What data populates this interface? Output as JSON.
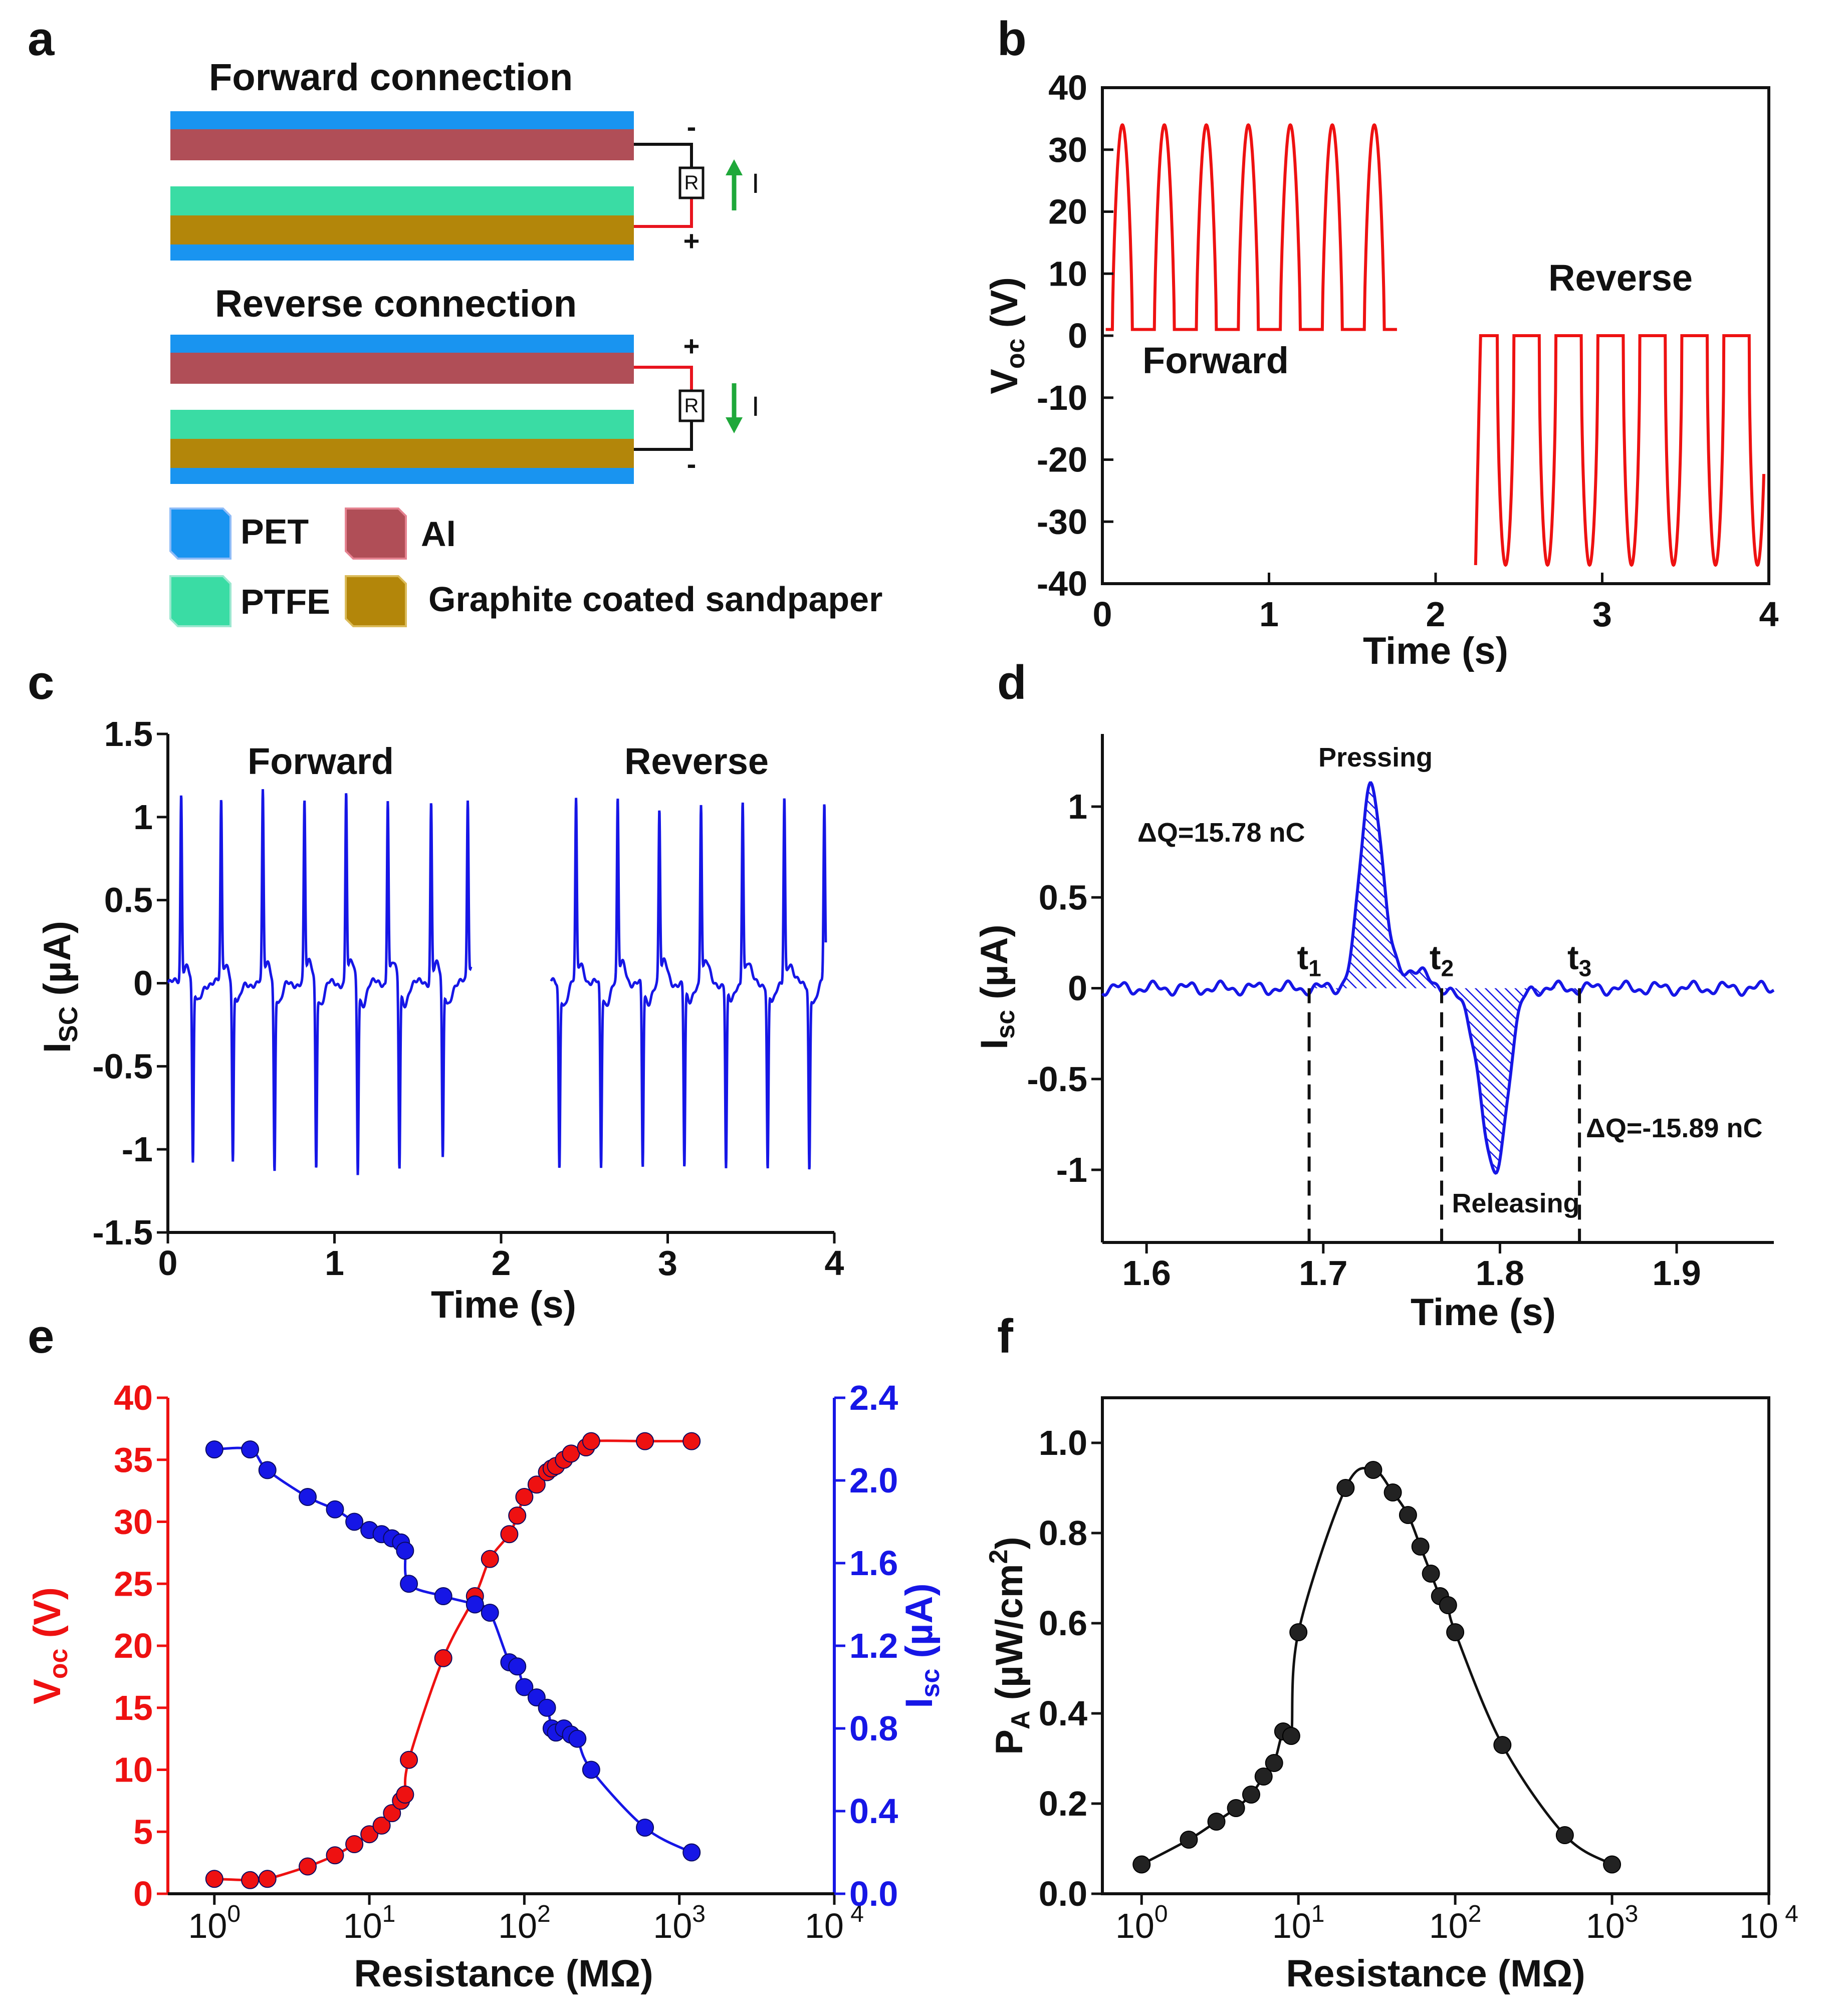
{
  "colors": {
    "red": "#ee1111",
    "blue": "#1616e6",
    "black": "#111111",
    "green": "#1fa83a",
    "pet": "#1994f0",
    "al": "#b04e57",
    "ptfe": "#3adca4",
    "graphite": "#b3860a"
  },
  "panels": {
    "a": "a",
    "b": "b",
    "c": "c",
    "d": "d",
    "e": "e",
    "f": "f"
  },
  "schematic": {
    "forward_title": "Forward connection",
    "reverse_title": "Reverse connection",
    "resistor": "R",
    "current": "I",
    "plus": "+",
    "minus": "-",
    "legend": {
      "pet": "PET",
      "al": "Al",
      "ptfe": "PTFE",
      "graphite": "Graphite coated sandpaper"
    }
  },
  "chart_data": [
    {
      "id": "b",
      "type": "line",
      "xlabel": "Time (s)",
      "ylabel": {
        "main": "V",
        "sub": "oc",
        "rest": " (V)"
      },
      "xlim": [
        0,
        4
      ],
      "ylim": [
        -40,
        40
      ],
      "xticks": [
        "0",
        "1",
        "2",
        "3",
        "4"
      ],
      "yticks": [
        "-40",
        "-30",
        "-20",
        "-10",
        "0",
        "10",
        "20",
        "30",
        "40"
      ],
      "annotations": {
        "forward": "Forward",
        "reverse": "Reverse"
      },
      "series": [
        {
          "name": "Forward",
          "period": 0.252,
          "first_peak_t": 0.12,
          "peak": 34,
          "base": 1.0,
          "t_end": 1.77,
          "peaks": 7
        },
        {
          "name": "Reverse",
          "period": 0.252,
          "t_start": 2.24,
          "t_end": 3.97,
          "top": 0.0,
          "bottom": -37,
          "peaks": 7
        }
      ]
    },
    {
      "id": "c",
      "type": "line",
      "xlabel": "Time (s)",
      "ylabel": {
        "main": "I",
        "sub": "SC",
        "rest": " (µA)"
      },
      "xlim": [
        0,
        4
      ],
      "ylim": [
        -1.5,
        1.5
      ],
      "xticks": [
        "0",
        "1",
        "2",
        "3",
        "4"
      ],
      "yticks": [
        "-1.5",
        "-1",
        "-0.5",
        "0",
        "0.5",
        "1",
        "1.5"
      ],
      "annotations": {
        "forward": "Forward",
        "reverse": "Reverse"
      },
      "series": [
        {
          "name": "Forward",
          "t_range": [
            0.0,
            1.82
          ],
          "peak_t": [
            0.08,
            0.32,
            0.57,
            0.82,
            1.07,
            1.32,
            1.58,
            1.8
          ],
          "peak_values": [
            1.1,
            1.05,
            1.1,
            1.05,
            1.12,
            1.08,
            1.06,
            1.06
          ],
          "valley_t": [
            0.15,
            0.39,
            0.64,
            0.89,
            1.14,
            1.39,
            1.65
          ],
          "valley_values": [
            -1.08,
            -1.05,
            -1.1,
            -1.08,
            -1.12,
            -1.1,
            -1.05
          ]
        },
        {
          "name": "Reverse",
          "t_range": [
            2.3,
            3.95
          ],
          "peak_t": [
            2.45,
            2.7,
            2.95,
            3.2,
            3.45,
            3.7,
            3.94
          ],
          "peak_values": [
            1.05,
            1.05,
            1.0,
            1.05,
            1.08,
            1.1,
            1.05
          ],
          "valley_t": [
            2.35,
            2.6,
            2.85,
            3.1,
            3.35,
            3.6,
            3.85
          ],
          "valley_values": [
            -1.08,
            -1.08,
            -1.08,
            -1.08,
            -1.08,
            -1.08,
            -1.08
          ]
        }
      ]
    },
    {
      "id": "d",
      "type": "line",
      "xlabel": "Time (s)",
      "ylabel": {
        "main": "I",
        "sub": "sc",
        "rest": " (µA)"
      },
      "xlim": [
        1.575,
        1.955
      ],
      "ylim": [
        -1.4,
        1.4
      ],
      "xticks": [
        "1.6",
        "1.7",
        "1.8",
        "1.9"
      ],
      "xtick_values": [
        1.6,
        1.7,
        1.8,
        1.9
      ],
      "yticks": [
        "-1",
        "-0.5",
        "0",
        "0.5",
        "1"
      ],
      "ytick_values": [
        -1,
        -0.5,
        0,
        0.5,
        1
      ],
      "t_markers": [
        {
          "label": "t",
          "sub": "1",
          "t": 1.692
        },
        {
          "label": "t",
          "sub": "2",
          "t": 1.767
        },
        {
          "label": "t",
          "sub": "3",
          "t": 1.845
        }
      ],
      "annotations": {
        "pressing": "Pressing",
        "releasing": "Releasing",
        "dq_pos": "ΔQ=15.78 nC",
        "dq_neg": "ΔQ=-15.89 nC"
      },
      "peak": {
        "t": 1.727,
        "value": 1.17
      },
      "valley": {
        "t": 1.797,
        "value": -1.02
      }
    },
    {
      "id": "e",
      "type": "scatter",
      "xlabel": "Resistance (MΩ)",
      "xscale": "log",
      "xlim_log10": [
        -0.3,
        4
      ],
      "xticks": [
        {
          "base": "10",
          "exp": "0"
        },
        {
          "base": "10",
          "exp": "1"
        },
        {
          "base": "10",
          "exp": "2"
        },
        {
          "base": "10",
          "exp": "3"
        },
        {
          "base": "10",
          "exp": " 4"
        }
      ],
      "ylabel_left": {
        "main": "V",
        "sub": "oc",
        "rest": " (V)"
      },
      "ylim_left": [
        0,
        40
      ],
      "yticks_left": [
        "0",
        "5",
        "10",
        "15",
        "20",
        "25",
        "30",
        "35",
        "40"
      ],
      "ylabel_right": {
        "main": "I",
        "sub": "sc",
        "rest": " (µA)"
      },
      "ylim_right": [
        0,
        2.4
      ],
      "yticks_right": [
        "0.0",
        "0.4",
        "0.8",
        "1.2",
        "1.6",
        "2.0",
        "2.4"
      ],
      "series": [
        {
          "name": "Voc",
          "axis": "left",
          "x": [
            1,
            1.7,
            2.2,
            4,
            6,
            8,
            10,
            12,
            14,
            16,
            17,
            18,
            30,
            48,
            60,
            80,
            90,
            100,
            120,
            140,
            150,
            160,
            180,
            200,
            250,
            270,
            600,
            1200
          ],
          "y": [
            1.2,
            1.1,
            1.2,
            2.2,
            3.1,
            4.0,
            4.8,
            5.5,
            6.5,
            7.5,
            8.0,
            10.8,
            19.0,
            24.0,
            27.0,
            29.0,
            30.5,
            32.0,
            33.0,
            34.0,
            34.3,
            34.5,
            35.0,
            35.5,
            36.0,
            36.5,
            36.5,
            36.5
          ]
        },
        {
          "name": "Isc",
          "axis": "right",
          "x": [
            1,
            1.7,
            2.2,
            4,
            6,
            8,
            10,
            12,
            14,
            16,
            17,
            18,
            30,
            48,
            60,
            80,
            90,
            100,
            120,
            140,
            150,
            160,
            180,
            200,
            220,
            270,
            600,
            1200
          ],
          "y": [
            2.15,
            2.15,
            2.05,
            1.92,
            1.86,
            1.8,
            1.76,
            1.74,
            1.72,
            1.7,
            1.66,
            1.5,
            1.44,
            1.4,
            1.36,
            1.12,
            1.1,
            1.0,
            0.95,
            0.9,
            0.8,
            0.78,
            0.8,
            0.77,
            0.75,
            0.6,
            0.32,
            0.2
          ]
        }
      ]
    },
    {
      "id": "f",
      "type": "scatter",
      "xlabel": "Resistance (MΩ)",
      "xscale": "log",
      "xlim_log10": [
        -0.25,
        4
      ],
      "xticks": [
        {
          "base": "10",
          "exp": "0"
        },
        {
          "base": "10",
          "exp": "1"
        },
        {
          "base": "10",
          "exp": "2"
        },
        {
          "base": "10",
          "exp": "3"
        },
        {
          "base": "10",
          "exp": " 4"
        }
      ],
      "ylabel": {
        "main": "P",
        "sub": "A",
        "rest": " (µW/cm",
        "sup": "2",
        "end": ")"
      },
      "ylim": [
        0,
        1.1
      ],
      "yticks": [
        "0.0",
        "0.2",
        "0.4",
        "0.6",
        "0.8",
        "1.0"
      ],
      "series": [
        {
          "name": "PA",
          "x": [
            1,
            2,
            3,
            4,
            5,
            6,
            7,
            8,
            9,
            10,
            20,
            30,
            40,
            50,
            60,
            70,
            80,
            90,
            100,
            200,
            500,
            1000
          ],
          "y": [
            0.065,
            0.12,
            0.16,
            0.19,
            0.22,
            0.26,
            0.29,
            0.36,
            0.35,
            0.58,
            0.9,
            0.94,
            0.89,
            0.84,
            0.77,
            0.71,
            0.66,
            0.64,
            0.58,
            0.33,
            0.13,
            0.065
          ]
        }
      ]
    }
  ]
}
